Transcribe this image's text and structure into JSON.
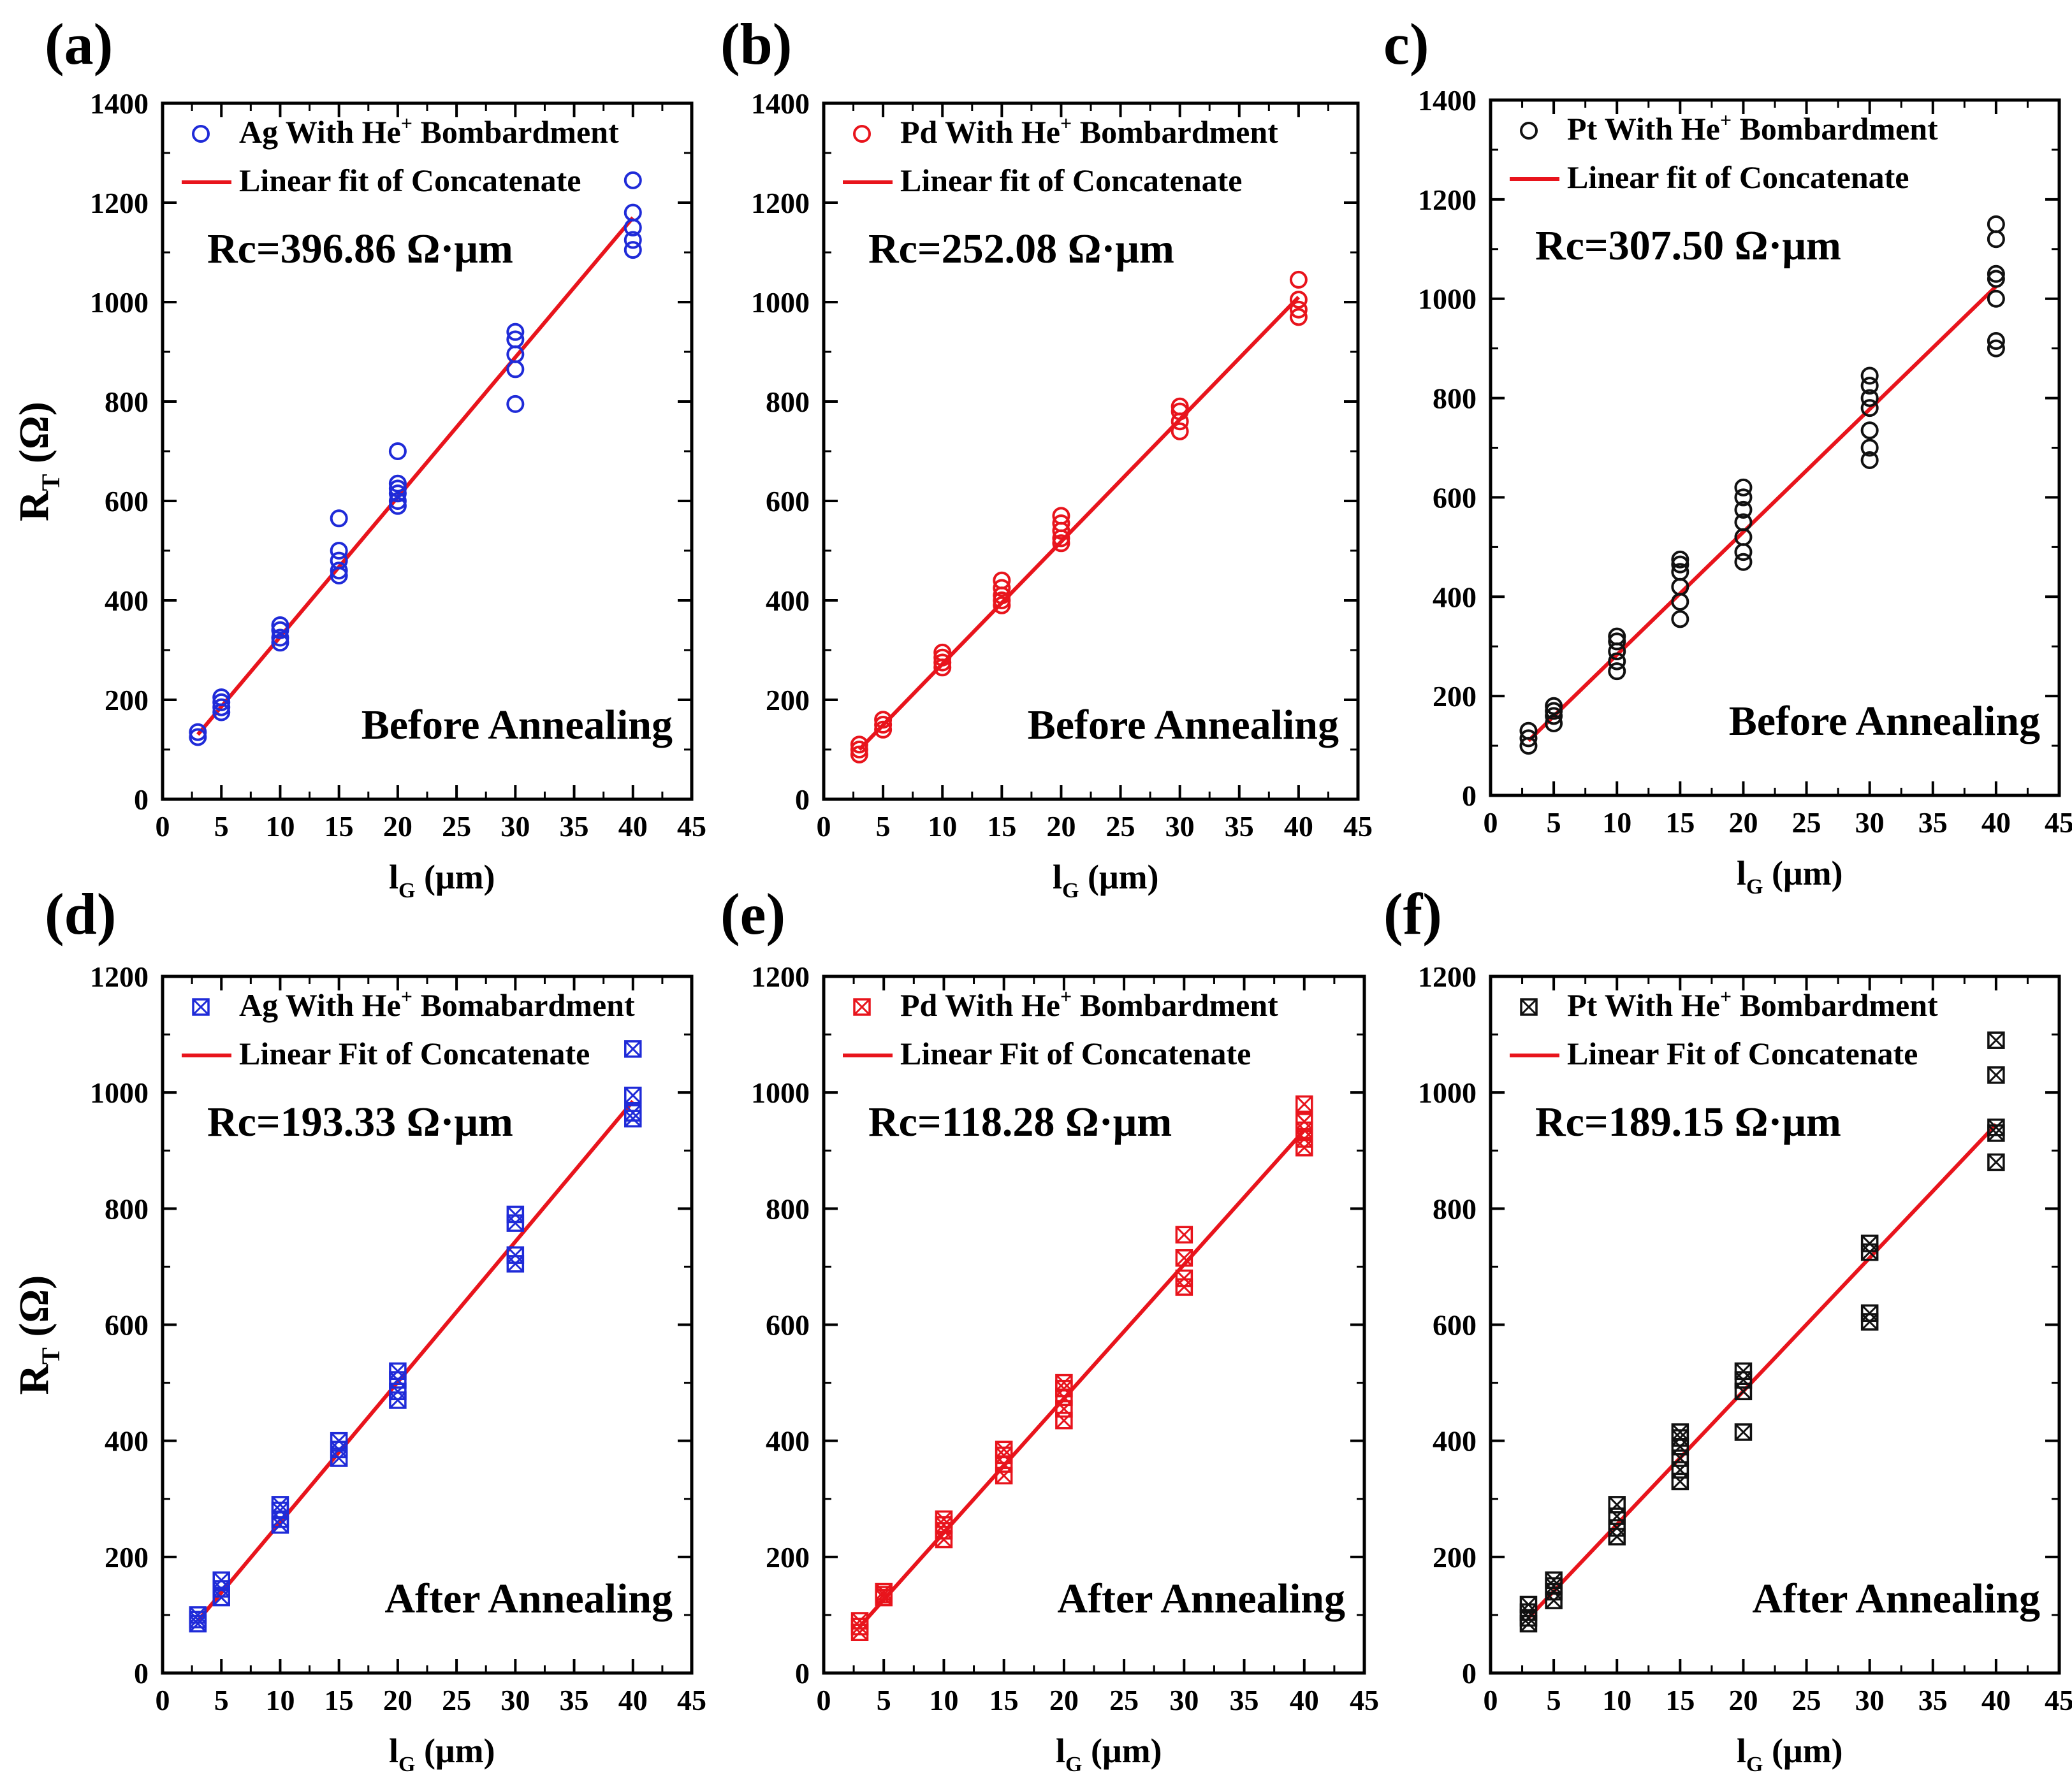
{
  "figure": {
    "description_axes": "Six panels of total resistance R_T versus gate spacing l_G",
    "x_label_main": "l",
    "x_label_sub": "G",
    "x_label_unit": " (μm)",
    "y_label_main": "R",
    "y_label_sub": "T",
    "y_label_unit": " (Ω)"
  },
  "chart_data": [
    {
      "id": "a",
      "panel_label": "(a)",
      "type": "scatter",
      "color": "#1f2bd8",
      "marker": "circle",
      "legend_scatter_pre": "Ag With He",
      "legend_sup": "+",
      "legend_scatter_post": " Bombardment",
      "legend_line": "Linear fit of Concatenate",
      "rc_text": "Rc=396.86 Ω·μm",
      "condition": "Before Annealing",
      "xlim": [
        0,
        45
      ],
      "ylim": [
        0,
        1400
      ],
      "xticks": [
        0,
        5,
        10,
        15,
        20,
        25,
        30,
        35,
        40,
        45
      ],
      "yticks": [
        0,
        200,
        400,
        600,
        800,
        1000,
        1200,
        1400
      ],
      "fit": {
        "x": [
          3,
          40
        ],
        "y": [
          130,
          1170
        ]
      },
      "points": {
        "x": [
          3,
          3,
          5,
          5,
          5,
          5,
          10,
          10,
          10,
          10,
          15,
          15,
          15,
          15,
          15,
          20,
          20,
          20,
          20,
          20,
          20,
          30,
          30,
          30,
          30,
          30,
          40,
          40,
          40,
          40,
          40
        ],
        "y": [
          125,
          135,
          175,
          185,
          195,
          205,
          315,
          325,
          340,
          350,
          450,
          460,
          480,
          500,
          565,
          590,
          600,
          615,
          625,
          635,
          700,
          795,
          865,
          895,
          925,
          940,
          1105,
          1125,
          1150,
          1180,
          1245
        ]
      }
    },
    {
      "id": "b",
      "panel_label": "(b)",
      "type": "scatter",
      "color": "#e8141c",
      "marker": "circle",
      "legend_scatter_pre": "Pd With He",
      "legend_sup": "+",
      "legend_scatter_post": " Bombardment",
      "legend_line": "Linear fit of Concatenate",
      "rc_text": "Rc=252.08 Ω·μm",
      "condition": "Before Annealing",
      "xlim": [
        0,
        45
      ],
      "ylim": [
        0,
        1400
      ],
      "xticks": [
        0,
        5,
        10,
        15,
        20,
        25,
        30,
        35,
        40,
        45
      ],
      "yticks": [
        0,
        200,
        400,
        600,
        800,
        1000,
        1200,
        1400
      ],
      "fit": {
        "x": [
          3,
          40
        ],
        "y": [
          100,
          1010
        ]
      },
      "points": {
        "x": [
          3,
          3,
          3,
          5,
          5,
          5,
          10,
          10,
          10,
          10,
          15,
          15,
          15,
          15,
          15,
          20,
          20,
          20,
          20,
          20,
          30,
          30,
          30,
          30,
          40,
          40,
          40,
          40
        ],
        "y": [
          90,
          100,
          110,
          140,
          150,
          160,
          265,
          275,
          285,
          295,
          390,
          400,
          410,
          425,
          440,
          515,
          525,
          540,
          555,
          570,
          740,
          760,
          780,
          790,
          970,
          985,
          1005,
          1045
        ]
      }
    },
    {
      "id": "c",
      "panel_label": "c)",
      "type": "scatter",
      "color": "#111111",
      "marker": "circle",
      "legend_scatter_pre": "Pt With He",
      "legend_sup": "+",
      "legend_scatter_post": " Bombardment",
      "legend_line": "Linear fit of Concatenate",
      "rc_text": "Rc=307.50 Ω·μm",
      "condition": "Before Annealing",
      "xlim": [
        0,
        45
      ],
      "ylim": [
        0,
        1400
      ],
      "xticks": [
        0,
        5,
        10,
        15,
        20,
        25,
        30,
        35,
        40,
        45
      ],
      "yticks": [
        0,
        200,
        400,
        600,
        800,
        1000,
        1200,
        1400
      ],
      "fit": {
        "x": [
          3,
          40
        ],
        "y": [
          110,
          1025
        ]
      },
      "points": {
        "x": [
          3,
          3,
          3,
          5,
          5,
          5,
          5,
          10,
          10,
          10,
          10,
          10,
          15,
          15,
          15,
          15,
          15,
          15,
          20,
          20,
          20,
          20,
          20,
          20,
          20,
          30,
          30,
          30,
          30,
          30,
          30,
          30,
          40,
          40,
          40,
          40,
          40,
          40,
          40
        ],
        "y": [
          100,
          115,
          130,
          145,
          160,
          170,
          180,
          250,
          270,
          290,
          310,
          320,
          355,
          390,
          420,
          450,
          465,
          475,
          470,
          490,
          520,
          550,
          575,
          600,
          620,
          675,
          700,
          735,
          780,
          800,
          825,
          845,
          900,
          915,
          1000,
          1040,
          1050,
          1120,
          1150
        ]
      }
    },
    {
      "id": "d",
      "panel_label": "(d)",
      "type": "scatter",
      "color": "#1f2bd8",
      "marker": "crossed-square",
      "legend_scatter_pre": "Ag With He",
      "legend_sup": "+",
      "legend_scatter_post": " Bomabardment",
      "legend_line": "Linear Fit of Concatenate",
      "rc_text": "Rc=193.33 Ω·μm",
      "condition": "After Annealing",
      "xlim": [
        0,
        45
      ],
      "ylim": [
        0,
        1200
      ],
      "xticks": [
        0,
        5,
        10,
        15,
        20,
        25,
        30,
        35,
        40,
        45
      ],
      "yticks": [
        0,
        200,
        400,
        600,
        800,
        1000,
        1200
      ],
      "fit": {
        "x": [
          3,
          40
        ],
        "y": [
          90,
          985
        ]
      },
      "points": {
        "x": [
          3,
          3,
          3,
          5,
          5,
          5,
          10,
          10,
          10,
          10,
          15,
          15,
          15,
          20,
          20,
          20,
          20,
          30,
          30,
          30,
          30,
          40,
          40,
          40,
          40
        ],
        "y": [
          85,
          92,
          100,
          130,
          145,
          160,
          255,
          265,
          280,
          290,
          370,
          385,
          400,
          470,
          485,
          505,
          520,
          705,
          720,
          775,
          790,
          955,
          965,
          995,
          1075
        ]
      }
    },
    {
      "id": "e",
      "panel_label": "(e)",
      "type": "scatter",
      "color": "#e8141c",
      "marker": "crossed-square",
      "legend_scatter_pre": "Pd With He",
      "legend_sup": "+",
      "legend_scatter_post": " Bombardment",
      "legend_line": "Linear Fit of Concatenate",
      "rc_text": "Rc=118.28 Ω·μm",
      "condition": "After Annealing",
      "xlim": [
        0,
        45
      ],
      "ylim": [
        0,
        1200
      ],
      "xticks": [
        0,
        5,
        10,
        15,
        20,
        25,
        30,
        35,
        40,
        45
      ],
      "yticks": [
        0,
        200,
        400,
        600,
        800,
        1000,
        1200
      ],
      "fit": {
        "x": [
          3,
          40
        ],
        "y": [
          80,
          935
        ]
      },
      "points": {
        "x": [
          3,
          3,
          3,
          5,
          5,
          5,
          10,
          10,
          10,
          10,
          15,
          15,
          15,
          15,
          20,
          20,
          20,
          20,
          20,
          30,
          30,
          30,
          30,
          40,
          40,
          40,
          40,
          40
        ],
        "y": [
          70,
          80,
          90,
          130,
          135,
          140,
          230,
          245,
          255,
          265,
          340,
          360,
          375,
          385,
          435,
          455,
          475,
          490,
          500,
          665,
          680,
          715,
          755,
          905,
          920,
          935,
          950,
          980
        ]
      }
    },
    {
      "id": "f",
      "panel_label": "(f)",
      "type": "scatter",
      "color": "#111111",
      "marker": "crossed-square",
      "legend_scatter_pre": "Pt With He",
      "legend_sup": "+",
      "legend_scatter_post": " Bombardment",
      "legend_line": "Linear Fit of Concatenate",
      "rc_text": "Rc=189.15 Ω·μm",
      "condition": "After Annealing",
      "xlim": [
        0,
        45
      ],
      "ylim": [
        0,
        1200
      ],
      "xticks": [
        0,
        5,
        10,
        15,
        20,
        25,
        30,
        35,
        40,
        45
      ],
      "yticks": [
        0,
        200,
        400,
        600,
        800,
        1000,
        1200
      ],
      "fit": {
        "x": [
          3,
          40
        ],
        "y": [
          95,
          945
        ]
      },
      "points": {
        "x": [
          3,
          3,
          3,
          3,
          5,
          5,
          5,
          5,
          10,
          10,
          10,
          10,
          15,
          15,
          15,
          15,
          15,
          15,
          20,
          20,
          20,
          20,
          30,
          30,
          30,
          30,
          40,
          40,
          40,
          40,
          40
        ],
        "y": [
          85,
          95,
          105,
          118,
          125,
          140,
          150,
          160,
          235,
          250,
          270,
          290,
          330,
          350,
          370,
          390,
          405,
          415,
          415,
          485,
          505,
          520,
          605,
          620,
          725,
          740,
          880,
          930,
          940,
          1030,
          1090
        ]
      }
    }
  ]
}
